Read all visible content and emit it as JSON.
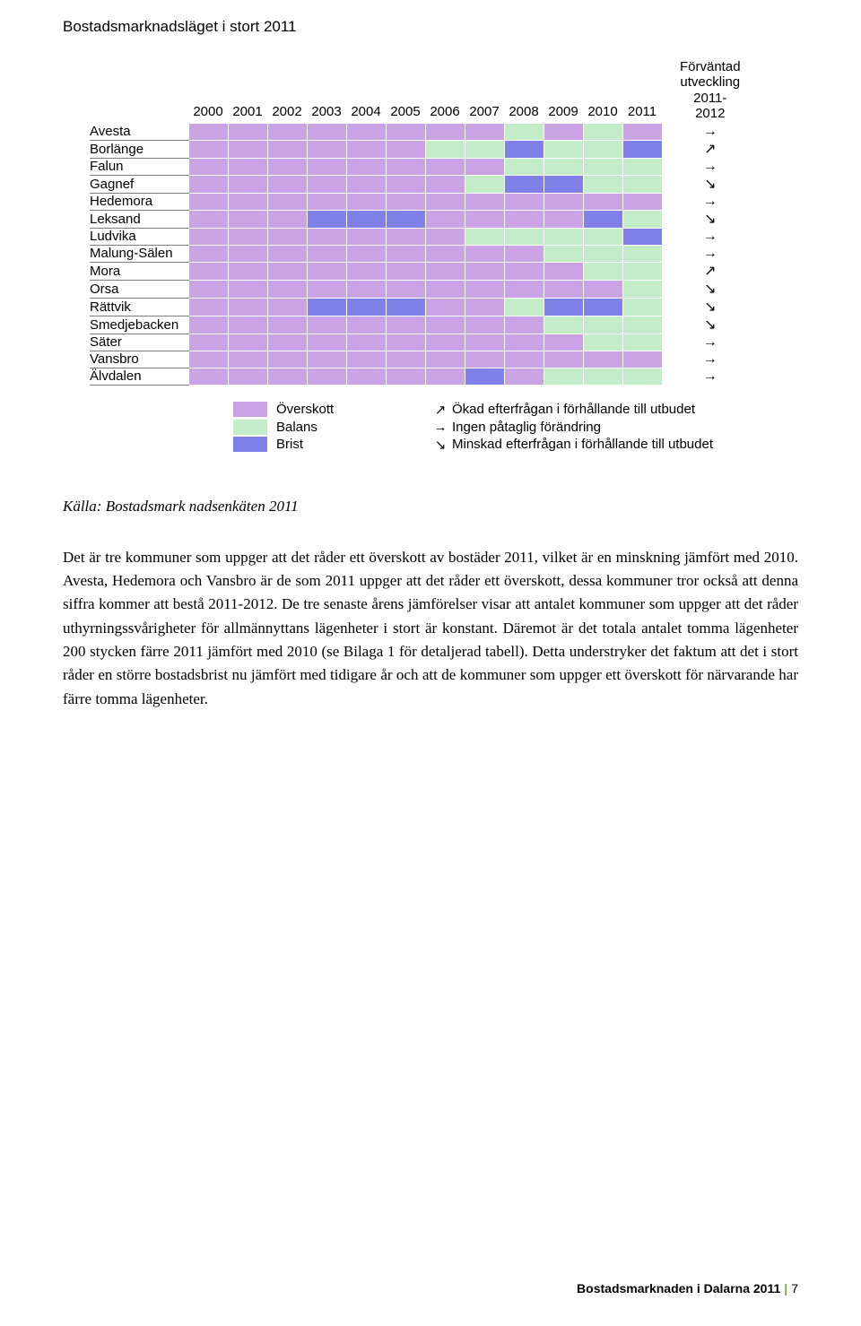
{
  "title": "Bostadsmarknadsläget i stort 2011",
  "source": "Källa: Bostadsmark nadsenkäten 2011",
  "body_text": "Det är tre kommuner som uppger att det råder ett överskott av bostäder 2011, vilket är en minskning jämfört med 2010. Avesta, Hedemora och Vansbro är de som 2011 uppger att det råder ett överskott, dessa kommuner tror också att denna siffra kommer att bestå 2011-2012. De tre senaste årens jämförelser visar att antalet kommuner som uppger att det råder uthyrningssvårigheter för allmännyttans lägenheter i stort är konstant. Däremot är det totala antalet tomma lägenheter 200 stycken färre 2011 jämfört med 2010 (se Bilaga 1 för detaljerad tabell). Detta understryker det faktum att det i stort råder en större bostadsbrist nu jämfört med tidigare år och att de kommuner som uppger ett överskott för närvarande har färre tomma lägenheter.",
  "footer_title": "Bostadsmarknaden i Dalarna 2011",
  "footer_page": "7",
  "chart": {
    "type": "heatmap-table",
    "colors": {
      "overskott": "#c9a3e6",
      "balans": "#c3edc8",
      "brist": "#8080e8",
      "border": "#7e7e7e",
      "bg": "#ffffff"
    },
    "years": [
      "2000",
      "2001",
      "2002",
      "2003",
      "2004",
      "2005",
      "2006",
      "2007",
      "2008",
      "2009",
      "2010",
      "2011"
    ],
    "forecast_header": "Förväntad\nutveckling\n2011-2012",
    "rows": [
      {
        "name": "Avesta",
        "cells": [
          "O",
          "O",
          "O",
          "O",
          "O",
          "O",
          "O",
          "O",
          "B",
          "O",
          "B",
          "O"
        ],
        "arrow": "→"
      },
      {
        "name": "Borlänge",
        "cells": [
          "O",
          "O",
          "O",
          "O",
          "O",
          "O",
          "B",
          "B",
          "R",
          "B",
          "B",
          "R"
        ],
        "arrow": "↗"
      },
      {
        "name": "Falun",
        "cells": [
          "O",
          "O",
          "O",
          "O",
          "O",
          "O",
          "O",
          "O",
          "B",
          "B",
          "B",
          "B"
        ],
        "arrow": "→"
      },
      {
        "name": "Gagnef",
        "cells": [
          "O",
          "O",
          "O",
          "O",
          "O",
          "O",
          "O",
          "B",
          "R",
          "R",
          "B",
          "B"
        ],
        "arrow": "↘"
      },
      {
        "name": "Hedemora",
        "cells": [
          "O",
          "O",
          "O",
          "O",
          "O",
          "O",
          "O",
          "O",
          "O",
          "O",
          "O",
          "O"
        ],
        "arrow": "→"
      },
      {
        "name": "Leksand",
        "cells": [
          "O",
          "O",
          "O",
          "R",
          "R",
          "R",
          "O",
          "O",
          "O",
          "O",
          "R",
          "B"
        ],
        "arrow": "↘"
      },
      {
        "name": "Ludvika",
        "cells": [
          "O",
          "O",
          "O",
          "O",
          "O",
          "O",
          "O",
          "B",
          "B",
          "B",
          "B",
          "R"
        ],
        "arrow": "→"
      },
      {
        "name": "Malung-Sälen",
        "cells": [
          "O",
          "O",
          "O",
          "O",
          "O",
          "O",
          "O",
          "O",
          "O",
          "B",
          "B",
          "B"
        ],
        "arrow": "→"
      },
      {
        "name": "Mora",
        "cells": [
          "O",
          "O",
          "O",
          "O",
          "O",
          "O",
          "O",
          "O",
          "O",
          "O",
          "B",
          "B"
        ],
        "arrow": "↗"
      },
      {
        "name": "Orsa",
        "cells": [
          "O",
          "O",
          "O",
          "O",
          "O",
          "O",
          "O",
          "O",
          "O",
          "O",
          "O",
          "B"
        ],
        "arrow": "↘"
      },
      {
        "name": "Rättvik",
        "cells": [
          "O",
          "O",
          "O",
          "R",
          "R",
          "R",
          "O",
          "O",
          "B",
          "R",
          "R",
          "B"
        ],
        "arrow": "↘"
      },
      {
        "name": "Smedjebacken",
        "cells": [
          "O",
          "O",
          "O",
          "O",
          "O",
          "O",
          "O",
          "O",
          "O",
          "B",
          "B",
          "B"
        ],
        "arrow": "↘"
      },
      {
        "name": "Säter",
        "cells": [
          "O",
          "O",
          "O",
          "O",
          "O",
          "O",
          "O",
          "O",
          "O",
          "O",
          "B",
          "B"
        ],
        "arrow": "→"
      },
      {
        "name": "Vansbro",
        "cells": [
          "O",
          "O",
          "O",
          "O",
          "O",
          "O",
          "O",
          "O",
          "O",
          "O",
          "O",
          "O"
        ],
        "arrow": "→"
      },
      {
        "name": "Älvdalen",
        "cells": [
          "O",
          "O",
          "O",
          "O",
          "O",
          "O",
          "O",
          "R",
          "O",
          "B",
          "B",
          "B"
        ],
        "arrow": "→"
      }
    ],
    "legend_colors": [
      {
        "swatch": "overskott",
        "label": "Överskott"
      },
      {
        "swatch": "balans",
        "label": "Balans"
      },
      {
        "swatch": "brist",
        "label": "Brist"
      }
    ],
    "legend_arrows": [
      {
        "arrow": "↗",
        "desc": "Ökad efterfrågan i förhållande till utbudet"
      },
      {
        "arrow": "→",
        "desc": "Ingen påtaglig förändring"
      },
      {
        "arrow": "↘",
        "desc": "Minskad efterfrågan i förhållande till utbudet"
      }
    ]
  }
}
